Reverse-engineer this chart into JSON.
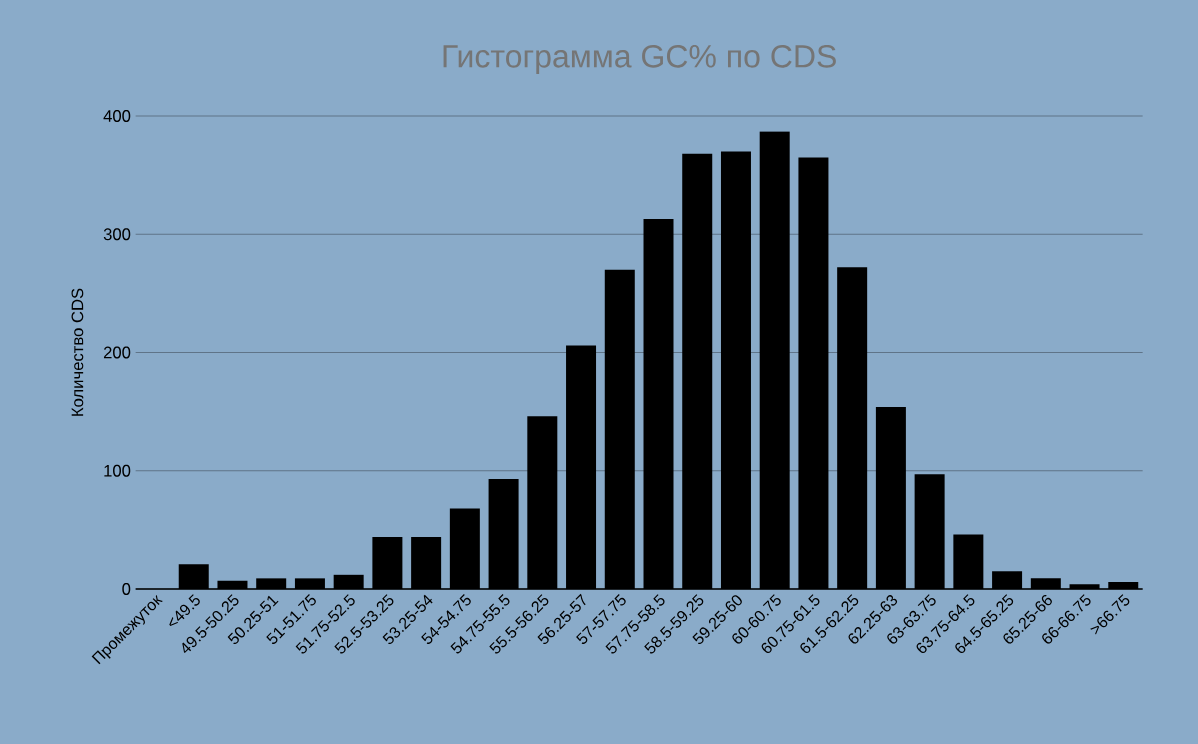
{
  "chart_data": {
    "type": "bar",
    "title": "Гистограмма GC% по CDS",
    "ylabel": "Количество CDS",
    "categories": [
      "Промежуток",
      "<49.5",
      "49.5-50.25",
      "50.25-51",
      "51-51.75",
      "51.75-52.5",
      "52.5-53.25",
      "53.25-54",
      "54-54.75",
      "54.75-55.5",
      "55.5-56.25",
      "56.25-57",
      "57-57.75",
      "57.75-58.5",
      "58.5-59.25",
      "59.25-60",
      "60-60.75",
      "60.75-61.5",
      "61.5-62.25",
      "62.25-63",
      "63-63.75",
      "63.75-64.5",
      "64.5-65.25",
      "65.25-66",
      "66-66.75",
      ">66.75"
    ],
    "values": [
      null,
      21,
      7,
      9,
      9,
      12,
      44,
      44,
      68,
      93,
      146,
      206,
      270,
      313,
      368,
      370,
      387,
      365,
      272,
      154,
      97,
      46,
      15,
      9,
      4,
      6
    ],
    "color": "#000000",
    "ylim": [
      0,
      400
    ],
    "yticks": [
      0,
      100,
      200,
      300,
      400
    ],
    "grid": "y"
  }
}
